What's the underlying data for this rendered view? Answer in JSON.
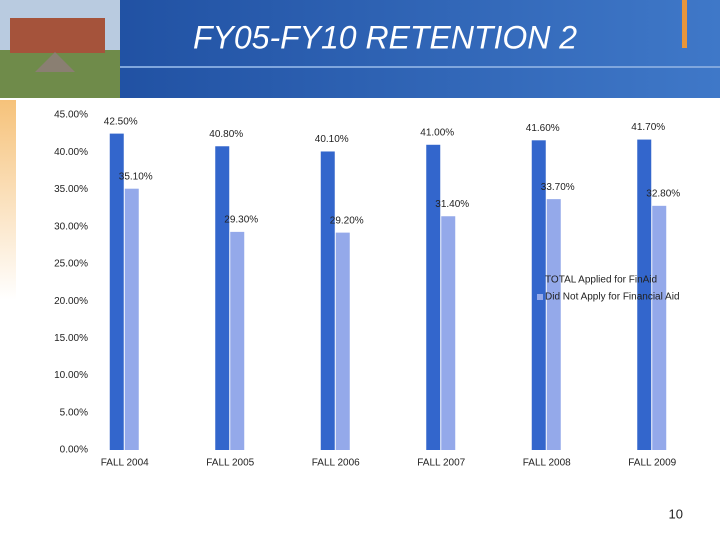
{
  "chart_data": {
    "type": "bar",
    "title": "FY05-FY10 RETENTION 2",
    "categories": [
      "FALL 2004",
      "FALL 2005",
      "FALL 2006",
      "FALL 2007",
      "FALL 2008",
      "FALL 2009"
    ],
    "series": [
      {
        "name": "TOTAL Applied for FinAid",
        "color": "#3366cc",
        "values": [
          42.5,
          40.8,
          40.1,
          41.0,
          41.6,
          41.7
        ],
        "value_labels": [
          "42.50%",
          "40.80%",
          "40.10%",
          "41.00%",
          "41.60%",
          "41.70%"
        ]
      },
      {
        "name": "Did Not Apply for Financial Aid",
        "color": "#94a9ea",
        "values": [
          35.1,
          29.3,
          29.2,
          31.4,
          33.7,
          32.8
        ],
        "value_labels": [
          "35.10%",
          "29.30%",
          "29.20%",
          "31.40%",
          "33.70%",
          "32.80%"
        ]
      }
    ],
    "ylim": [
      0,
      45
    ],
    "yticks": [
      {
        "value": 0,
        "label": "0.00%"
      },
      {
        "value": 5,
        "label": "5.00%"
      },
      {
        "value": 10,
        "label": "10.00%"
      },
      {
        "value": 15,
        "label": "15.00%"
      },
      {
        "value": 20,
        "label": "20.00%"
      },
      {
        "value": 25,
        "label": "25.00%"
      },
      {
        "value": 30,
        "label": "30.00%"
      },
      {
        "value": 35,
        "label": "35.00%"
      },
      {
        "value": 40,
        "label": "40.00%"
      },
      {
        "value": 45,
        "label": "45.00%"
      }
    ],
    "grid": false,
    "legend": "right"
  },
  "page_number": "10"
}
